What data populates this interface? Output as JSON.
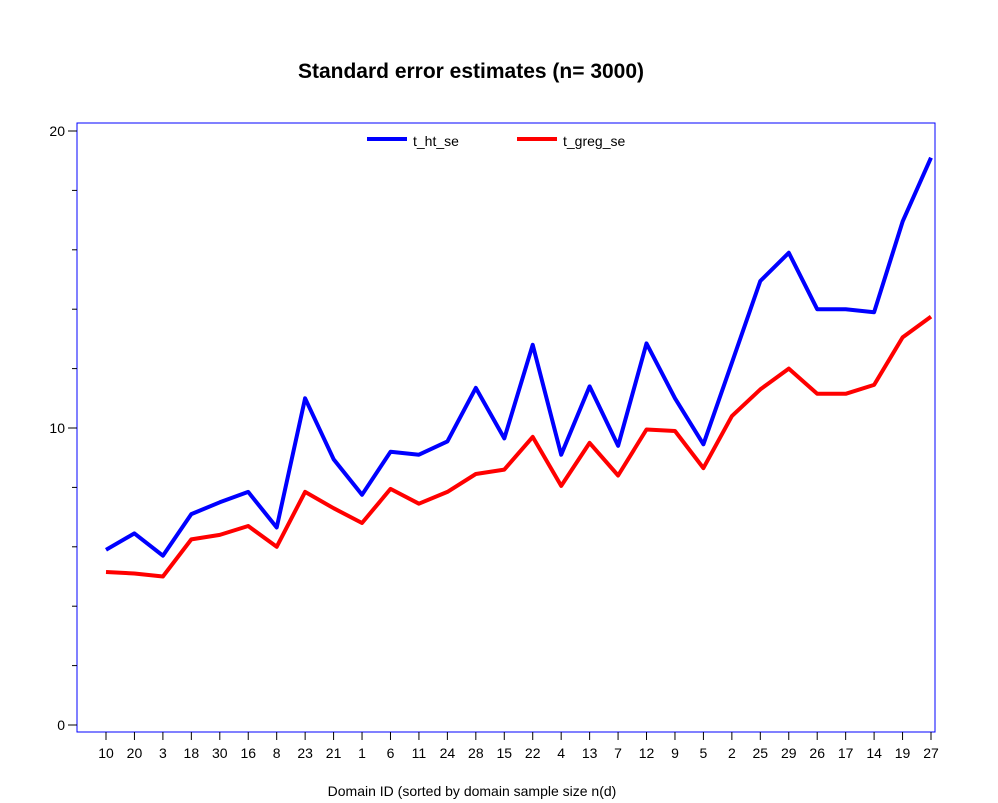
{
  "chart_data": {
    "type": "line",
    "title": "Standard error estimates (n= 3000)",
    "xlabel": "Domain ID (sorted by domain sample size n(d)",
    "ylabel": "",
    "categories": [
      "10",
      "20",
      "3",
      "18",
      "30",
      "16",
      "8",
      "23",
      "21",
      "1",
      "6",
      "11",
      "24",
      "28",
      "15",
      "22",
      "4",
      "13",
      "7",
      "12",
      "9",
      "5",
      "2",
      "25",
      "29",
      "26",
      "17",
      "14",
      "19",
      "27"
    ],
    "ylim": [
      0,
      20
    ],
    "yticks": [
      "0",
      "10",
      "20"
    ],
    "grid": false,
    "legend_position": "top-center",
    "series": [
      {
        "name": "t_ht_se",
        "color": "#0000ff",
        "values": [
          5.9,
          6.45,
          5.7,
          7.1,
          7.5,
          7.85,
          6.65,
          11.0,
          8.95,
          7.75,
          9.2,
          9.1,
          9.55,
          11.35,
          9.65,
          12.8,
          9.1,
          11.4,
          9.4,
          12.85,
          11.0,
          9.45,
          12.2,
          14.95,
          15.9,
          14.0,
          14.0,
          13.9,
          16.95,
          19.1
        ]
      },
      {
        "name": "t_greg_se",
        "color": "#ff0000",
        "values": [
          5.15,
          5.1,
          5.0,
          6.25,
          6.4,
          6.7,
          6.0,
          7.85,
          7.3,
          6.8,
          7.95,
          7.45,
          7.85,
          8.45,
          8.6,
          9.7,
          8.05,
          9.5,
          8.4,
          9.95,
          9.9,
          8.65,
          10.4,
          11.3,
          12.0,
          11.15,
          11.15,
          11.45,
          13.05,
          13.75
        ]
      }
    ]
  }
}
